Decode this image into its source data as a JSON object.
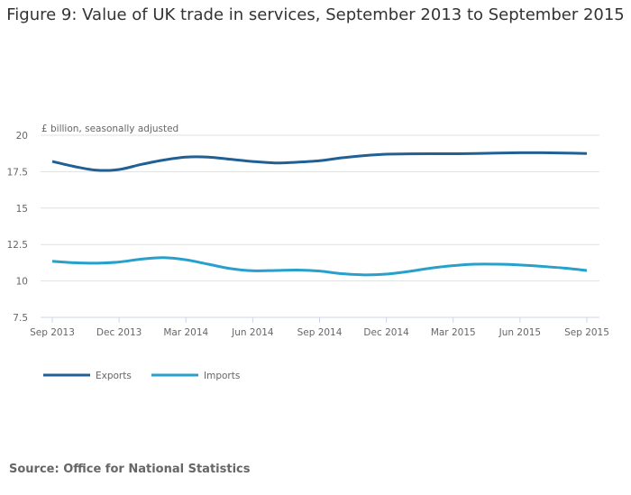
{
  "title": "Figure 9: Value of UK trade in services, September 2013 to September 2015",
  "source": "Source: Office for National Statistics",
  "chart_data": {
    "type": "line",
    "title": "Figure 9: Value of UK trade in services, September 2013 to September 2015",
    "ylabel": "£ billion, seasonally adjusted",
    "xlabel": "",
    "ylim": [
      7.5,
      20
    ],
    "yticks": [
      "20",
      "17.5",
      "15",
      "12.5",
      "10",
      "7.5"
    ],
    "xticks": [
      "Sep 2013",
      "Dec 2013",
      "Mar 2014",
      "Jun 2014",
      "Sep 2014",
      "Dec 2014",
      "Mar 2015",
      "Jun 2015",
      "Sep 2015"
    ],
    "x": [
      "Sep 2013",
      "Oct 2013",
      "Nov 2013",
      "Dec 2013",
      "Jan 2014",
      "Feb 2014",
      "Mar 2014",
      "Apr 2014",
      "May 2014",
      "Jun 2014",
      "Jul 2014",
      "Aug 2014",
      "Sep 2014",
      "Oct 2014",
      "Nov 2014",
      "Dec 2014",
      "Jan 2015",
      "Feb 2015",
      "Mar 2015",
      "Apr 2015",
      "May 2015",
      "Jun 2015",
      "Jul 2015",
      "Aug 2015",
      "Sep 2015"
    ],
    "grid": true,
    "legend": "bottom-left",
    "series": [
      {
        "name": "Exports",
        "color": "#206095",
        "values": [
          18.2,
          17.85,
          17.6,
          17.65,
          18.0,
          18.3,
          18.5,
          18.5,
          18.35,
          18.2,
          18.1,
          18.15,
          18.25,
          18.45,
          18.6,
          18.7,
          18.72,
          18.73,
          18.73,
          18.75,
          18.78,
          18.8,
          18.8,
          18.78,
          18.75
        ]
      },
      {
        "name": "Imports",
        "color": "#27a0cc",
        "values": [
          11.35,
          11.25,
          11.22,
          11.3,
          11.5,
          11.6,
          11.45,
          11.15,
          10.85,
          10.7,
          10.72,
          10.75,
          10.68,
          10.5,
          10.42,
          10.47,
          10.65,
          10.88,
          11.05,
          11.15,
          11.15,
          11.1,
          11.0,
          10.88,
          10.72
        ]
      }
    ]
  }
}
